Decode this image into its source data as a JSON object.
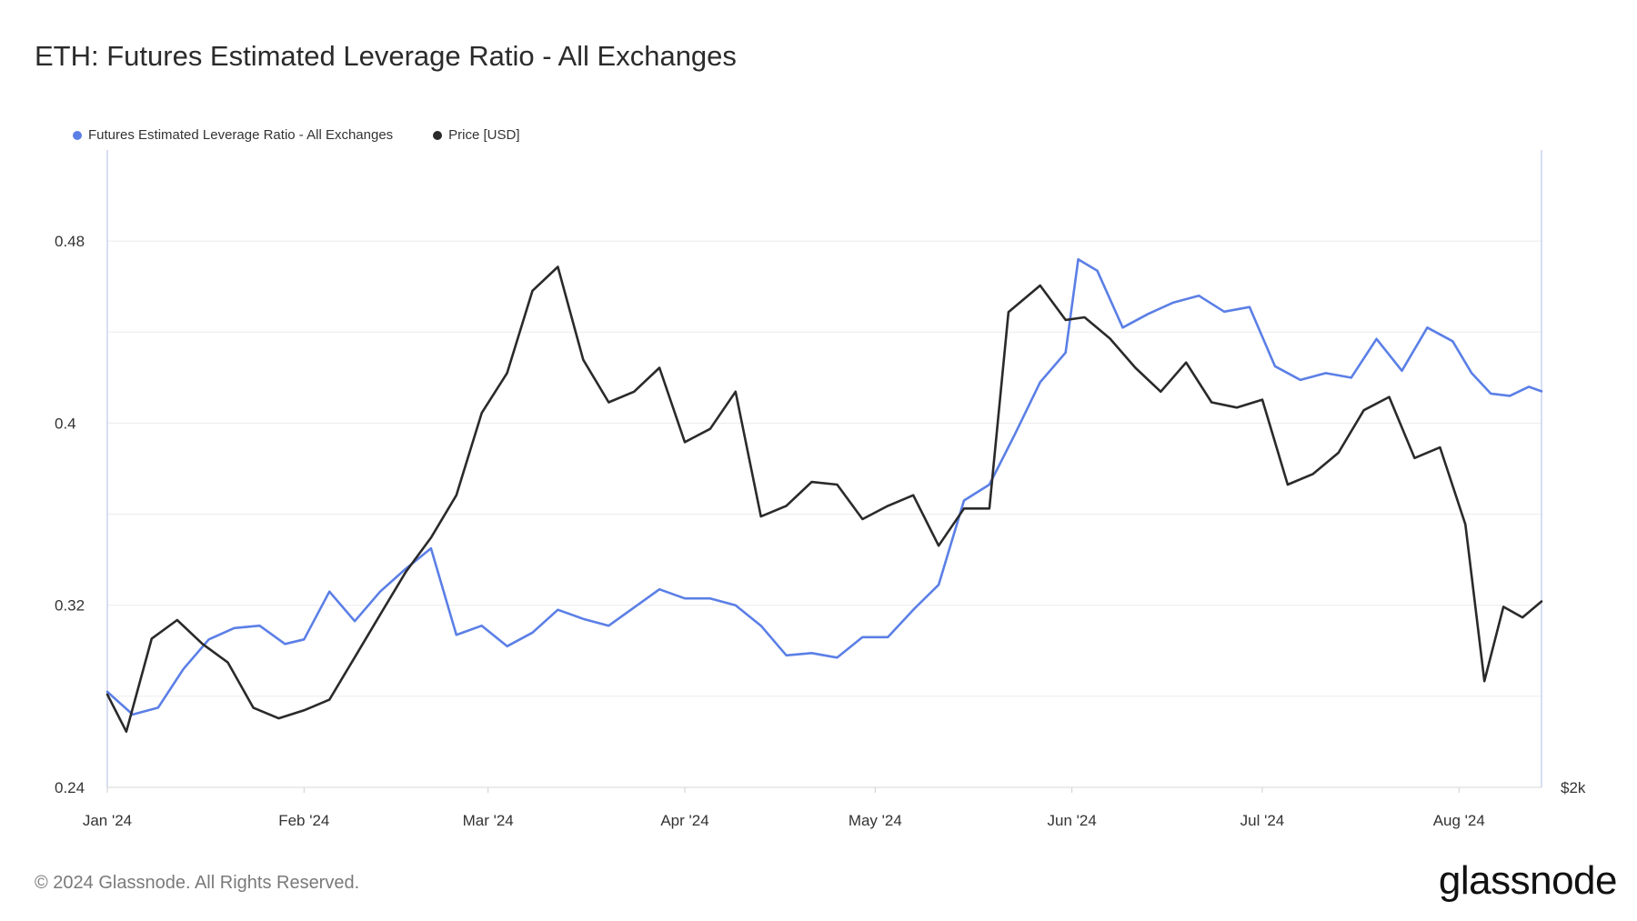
{
  "title": "ETH: Futures Estimated Leverage Ratio - All Exchanges",
  "footer": "© 2024 Glassnode. All Rights Reserved.",
  "brand": "glassnode",
  "colors": {
    "ratio": "#5b7fe6",
    "price": "#2a2a2a",
    "grid": "#ececec",
    "axis": "#c9d3ee"
  },
  "chart_data": {
    "type": "line",
    "title": "ETH: Futures Estimated Leverage Ratio - All Exchanges",
    "legend": [
      "Futures Estimated Leverage Ratio - All Exchanges",
      "Price [USD]"
    ],
    "legend_placement": "top-left",
    "grid": true,
    "x_ticks": [
      "Jan '24",
      "Feb '24",
      "Mar '24",
      "Apr '24",
      "May '24",
      "Jun '24",
      "Jul '24",
      "Aug '24"
    ],
    "x_tick_dates": [
      "2024-01-01",
      "2024-02-01",
      "2024-03-01",
      "2024-04-01",
      "2024-05-01",
      "2024-06-01",
      "2024-07-01",
      "2024-08-01"
    ],
    "xlim": [
      "2024-01-01",
      "2024-08-14"
    ],
    "y_left": {
      "ticks": [
        0.48,
        0.4,
        0.32,
        0.24
      ],
      "ylim": [
        0.24,
        0.52
      ]
    },
    "y_right": {
      "ticks": [
        "$2k"
      ],
      "tick_values": [
        2000
      ],
      "ylim": [
        2000,
        4400
      ]
    },
    "series": [
      {
        "name": "Futures Estimated Leverage Ratio - All Exchanges",
        "axis": "left",
        "x": [
          "2024-01-01",
          "2024-01-05",
          "2024-01-09",
          "2024-01-13",
          "2024-01-17",
          "2024-01-21",
          "2024-01-25",
          "2024-01-29",
          "2024-02-01",
          "2024-02-05",
          "2024-02-09",
          "2024-02-13",
          "2024-02-17",
          "2024-02-21",
          "2024-02-25",
          "2024-02-29",
          "2024-03-04",
          "2024-03-08",
          "2024-03-12",
          "2024-03-16",
          "2024-03-20",
          "2024-03-24",
          "2024-03-28",
          "2024-04-01",
          "2024-04-05",
          "2024-04-09",
          "2024-04-13",
          "2024-04-17",
          "2024-04-21",
          "2024-04-25",
          "2024-04-29",
          "2024-05-03",
          "2024-05-07",
          "2024-05-11",
          "2024-05-15",
          "2024-05-19",
          "2024-05-23",
          "2024-05-27",
          "2024-05-31",
          "2024-06-02",
          "2024-06-05",
          "2024-06-09",
          "2024-06-13",
          "2024-06-17",
          "2024-06-21",
          "2024-06-25",
          "2024-06-29",
          "2024-07-03",
          "2024-07-07",
          "2024-07-11",
          "2024-07-15",
          "2024-07-19",
          "2024-07-23",
          "2024-07-27",
          "2024-07-31",
          "2024-08-03",
          "2024-08-06",
          "2024-08-09",
          "2024-08-12",
          "2024-08-14"
        ],
        "values": [
          0.282,
          0.272,
          0.275,
          0.292,
          0.305,
          0.31,
          0.311,
          0.303,
          0.305,
          0.326,
          0.313,
          0.326,
          0.336,
          0.345,
          0.307,
          0.311,
          0.302,
          0.308,
          0.318,
          0.314,
          0.311,
          0.319,
          0.327,
          0.323,
          0.323,
          0.32,
          0.311,
          0.298,
          0.299,
          0.297,
          0.306,
          0.306,
          0.318,
          0.329,
          0.366,
          0.373,
          0.395,
          0.418,
          0.431,
          0.472,
          0.467,
          0.442,
          0.448,
          0.453,
          0.456,
          0.449,
          0.451,
          0.425,
          0.419,
          0.422,
          0.42,
          0.437,
          0.423,
          0.442,
          0.436,
          0.422,
          0.413,
          0.412,
          0.416,
          0.414
        ]
      },
      {
        "name": "Price [USD]",
        "axis": "right",
        "x": [
          "2024-01-01",
          "2024-01-04",
          "2024-01-08",
          "2024-01-12",
          "2024-01-16",
          "2024-01-20",
          "2024-01-24",
          "2024-01-28",
          "2024-02-01",
          "2024-02-05",
          "2024-02-09",
          "2024-02-13",
          "2024-02-17",
          "2024-02-21",
          "2024-02-25",
          "2024-02-29",
          "2024-03-04",
          "2024-03-08",
          "2024-03-12",
          "2024-03-16",
          "2024-03-20",
          "2024-03-24",
          "2024-03-28",
          "2024-04-01",
          "2024-04-05",
          "2024-04-09",
          "2024-04-13",
          "2024-04-17",
          "2024-04-21",
          "2024-04-25",
          "2024-04-29",
          "2024-05-03",
          "2024-05-07",
          "2024-05-11",
          "2024-05-15",
          "2024-05-19",
          "2024-05-22",
          "2024-05-27",
          "2024-05-31",
          "2024-06-03",
          "2024-06-07",
          "2024-06-11",
          "2024-06-15",
          "2024-06-19",
          "2024-06-23",
          "2024-06-27",
          "2024-07-01",
          "2024-07-05",
          "2024-07-09",
          "2024-07-13",
          "2024-07-17",
          "2024-07-21",
          "2024-07-25",
          "2024-07-29",
          "2024-08-02",
          "2024-08-05",
          "2024-08-08",
          "2024-08-11",
          "2024-08-14"
        ],
        "values": [
          2350,
          2210,
          2560,
          2630,
          2540,
          2470,
          2300,
          2260,
          2290,
          2330,
          2490,
          2650,
          2810,
          2940,
          3100,
          3410,
          3560,
          3870,
          3960,
          3610,
          3450,
          3490,
          3580,
          3300,
          3350,
          3490,
          3020,
          3060,
          3150,
          3140,
          3010,
          3060,
          3100,
          2910,
          3050,
          3050,
          3790,
          3890,
          3760,
          3770,
          3690,
          3580,
          3490,
          3600,
          3450,
          3430,
          3460,
          3140,
          3180,
          3260,
          3420,
          3470,
          3240,
          3280,
          2990,
          2400,
          2680,
          2640,
          2700
        ]
      }
    ]
  }
}
